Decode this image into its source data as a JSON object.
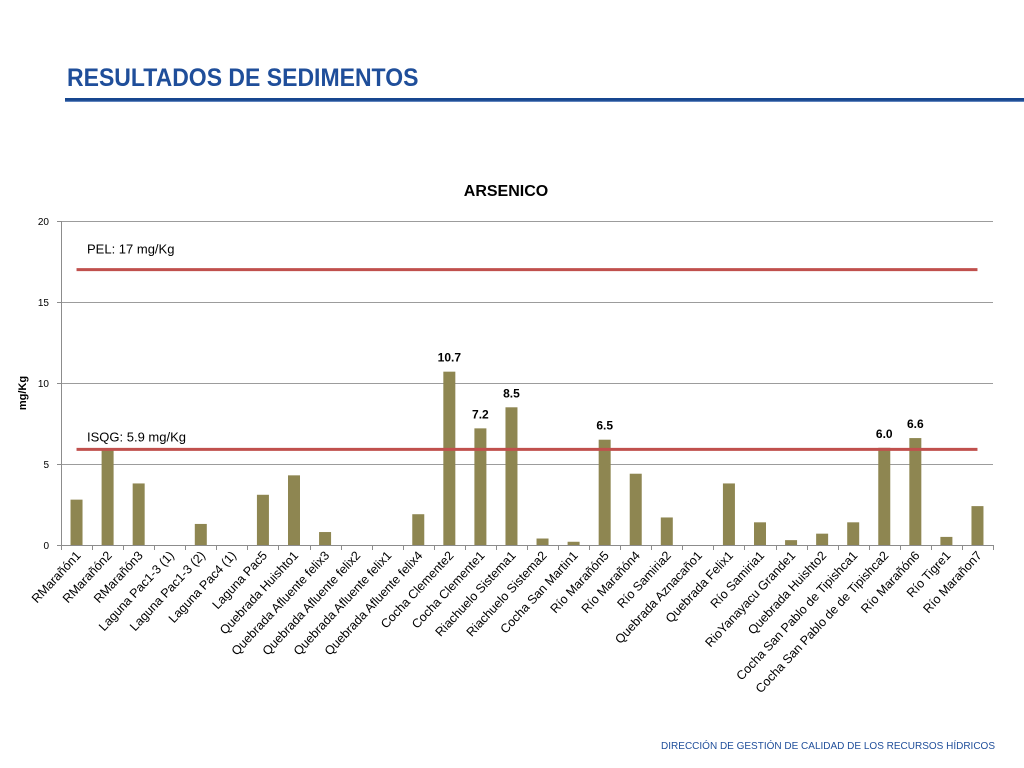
{
  "slide": {
    "title": "RESULTADOS DE SEDIMENTOS",
    "footer": "DIRECCIÓN DE GESTIÓN DE CALIDAD DE LOS RECURSOS HÍDRICOS"
  },
  "colors": {
    "title": "#1f4e9a",
    "footer": "#1f4e9a",
    "bar": "#8e8651",
    "reference_line": "#c0504d",
    "grid": "#9c9c9c",
    "axis": "#8c8c8c"
  },
  "chart_data": {
    "type": "bar",
    "title": "ARSENICO",
    "ylabel": "mg/Kg",
    "ylim": [
      0,
      20
    ],
    "yticks": [
      0,
      5,
      10,
      15,
      20
    ],
    "ytick_labels": [
      "0",
      "5",
      "10",
      "15",
      "20"
    ],
    "grid": true,
    "legend": "none",
    "categories": [
      "RMarañón1",
      "RMarañón2",
      "RMarañón3",
      "Laguna Pac1-3 (1)",
      "Laguna Pac1-3 (2)",
      "Laguna Pac4 (1)",
      "Laguna Pac5",
      "Quebrada Huishto1",
      "Quebrada Afluente felix3",
      "Quebrada Afluente felix2",
      "Quebrada Afluente felix1",
      "Quebrada Afluente felix4",
      "Cocha Clemente2",
      "Cocha Clemente1",
      "Riachuelo Sistema1",
      "Riachuelo Sistema2",
      "Cocha San Martin1",
      "Río Marañón5",
      "Río Marañón4",
      "Río Samiria2",
      "Quebrada Aznacaño1",
      "Quebrada Felix1",
      "Río Samiria1",
      "RioYanayacu Grande1",
      "Quebrada Huishto2",
      "Cocha San Pablo de Tipishca1",
      "Cocha San Pablo de de Tipishca2",
      "Río Marañón6",
      "Río Tigre1",
      "Río Marañon7"
    ],
    "values": [
      2.8,
      5.9,
      3.8,
      0,
      1.3,
      0,
      3.1,
      4.3,
      0.8,
      0,
      0,
      1.9,
      10.7,
      7.2,
      8.5,
      0.4,
      0.2,
      6.5,
      4.4,
      1.7,
      0,
      3.8,
      1.4,
      0.3,
      0.7,
      1.4,
      6.0,
      6.6,
      0.5,
      2.4
    ],
    "data_labels": [
      null,
      null,
      null,
      null,
      null,
      null,
      null,
      null,
      null,
      null,
      null,
      null,
      "10.7",
      "7.2",
      "8.5",
      null,
      null,
      "6.5",
      null,
      null,
      null,
      null,
      null,
      null,
      null,
      null,
      "6.0",
      "6.6",
      null,
      null
    ],
    "reference_lines": [
      {
        "label": "PEL: 17 mg/Kg",
        "value": 17
      },
      {
        "label": "ISQG: 5.9 mg/Kg",
        "value": 5.9
      }
    ]
  }
}
